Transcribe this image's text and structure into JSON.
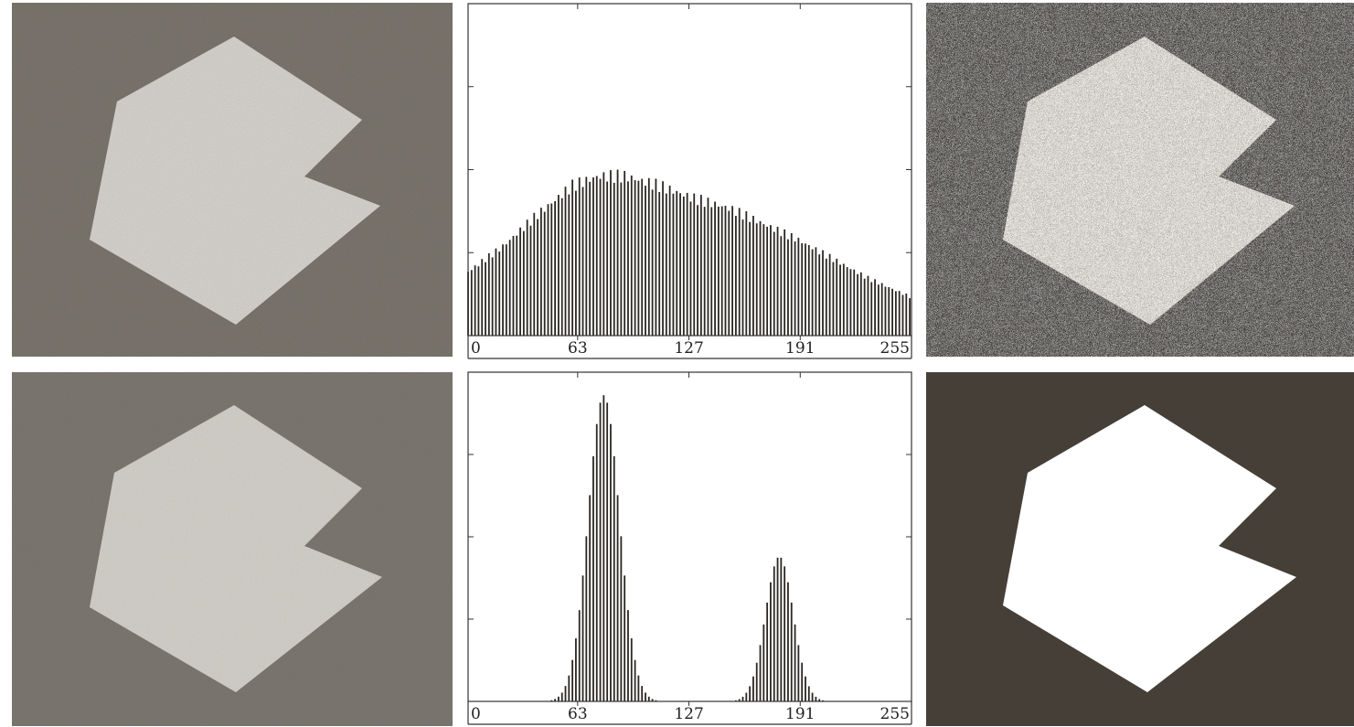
{
  "panels": {
    "noisy_image": {
      "background": "#7a756d",
      "shape_fill": "#d6d2cc"
    },
    "smoothed_image": {
      "background": "#7a766f",
      "shape_fill": "#d0ccc6"
    },
    "thresholded_noisy": {
      "background": "#4a4540",
      "shape_fill": "#ece9e4"
    },
    "thresholded_smoothed": {
      "background": "#463f38",
      "shape_fill": "#ffffff"
    }
  },
  "chart_data": [
    {
      "type": "bar",
      "title": "",
      "xlabel": "",
      "ylabel": "",
      "xlim": [
        0,
        255
      ],
      "ylim": [
        0,
        1.0
      ],
      "x_tick_labels": [
        "0",
        "63",
        "127",
        "191",
        "255"
      ],
      "x_tick_values": [
        0,
        63,
        127,
        191,
        255
      ],
      "y_tick_values": [
        0.25,
        0.5,
        0.75
      ],
      "bar_color": "#2b2722",
      "profile_points": [
        [
          0,
          0.2
        ],
        [
          20,
          0.28
        ],
        [
          40,
          0.38
        ],
        [
          60,
          0.47
        ],
        [
          75,
          0.5
        ],
        [
          90,
          0.5
        ],
        [
          110,
          0.47
        ],
        [
          130,
          0.43
        ],
        [
          150,
          0.4
        ],
        [
          170,
          0.35
        ],
        [
          190,
          0.3
        ],
        [
          210,
          0.24
        ],
        [
          230,
          0.18
        ],
        [
          255,
          0.12
        ]
      ]
    },
    {
      "type": "bar",
      "title": "",
      "xlabel": "",
      "ylabel": "",
      "xlim": [
        0,
        255
      ],
      "ylim": [
        0,
        1.0
      ],
      "x_tick_labels": [
        "0",
        "63",
        "127",
        "191",
        "255"
      ],
      "x_tick_values": [
        0,
        63,
        127,
        191,
        255
      ],
      "y_tick_values": [
        0.25,
        0.5,
        0.75
      ],
      "bar_color": "#2b2722",
      "series": [
        {
          "mean": 78,
          "sigma": 9,
          "peak": 0.93
        },
        {
          "mean": 179,
          "sigma": 8,
          "peak": 0.44
        }
      ]
    }
  ]
}
